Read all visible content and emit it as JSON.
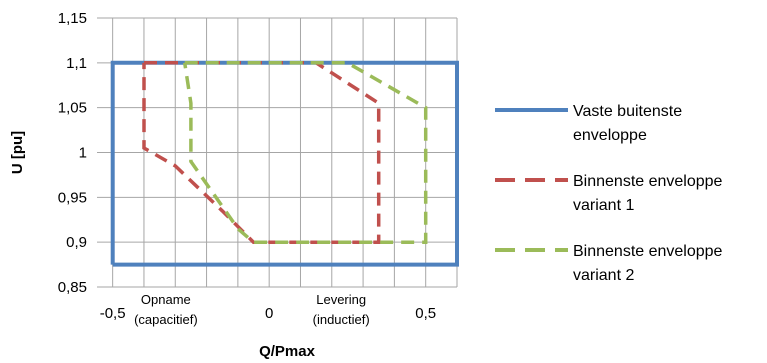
{
  "chart_data": {
    "type": "line",
    "title": "",
    "xlabel": "Q/Pmax",
    "ylabel": "U [pu]",
    "xlim": [
      -0.55,
      0.6
    ],
    "ylim": [
      0.85,
      1.15
    ],
    "grid": true,
    "x_gridlines": [
      -0.5,
      -0.4,
      -0.3,
      -0.2,
      -0.1,
      0,
      0.1,
      0.2,
      0.3,
      0.4,
      0.5,
      0.6
    ],
    "y_ticks": [
      0.85,
      0.9,
      0.95,
      1,
      1.05,
      1.1,
      1.15
    ],
    "y_tick_labels": [
      "0,85",
      "0,9",
      "0,95",
      "1",
      "1,05",
      "1,1",
      "1,15"
    ],
    "x_tick_labels": [
      {
        "value": -0.5,
        "label": "-0,5"
      },
      {
        "value": 0,
        "label": "0"
      },
      {
        "value": 0.5,
        "label": "0,5"
      }
    ],
    "annotations": [
      {
        "x": -0.33,
        "line1": "Opname",
        "line2": "(capacitief)"
      },
      {
        "x": 0.23,
        "line1": "Levering",
        "line2": "(inductief)"
      }
    ],
    "legend_position": "right",
    "series": [
      {
        "name_lines": [
          "Vaste buitenste",
          "enveloppe"
        ],
        "color": "#4f81bd",
        "style": "solid",
        "x": [
          -0.5,
          0.6,
          0.6,
          -0.5,
          -0.5
        ],
        "y": [
          0.875,
          0.875,
          1.1,
          1.1,
          0.875
        ]
      },
      {
        "name_lines": [
          "Binnenste enveloppe",
          "variant 1"
        ],
        "color": "#c0504d",
        "style": "dashed",
        "x": [
          -0.4,
          0.15,
          0.35,
          0.35,
          -0.05,
          -0.15,
          -0.3,
          -0.4,
          -0.4
        ],
        "y": [
          1.1,
          1.1,
          1.055,
          0.9,
          0.9,
          0.935,
          0.985,
          1.005,
          1.1
        ]
      },
      {
        "name_lines": [
          "Binnenste enveloppe",
          "variant 2"
        ],
        "color": "#9bbb59",
        "style": "dashed",
        "x": [
          -0.27,
          0.25,
          0.5,
          0.5,
          -0.05,
          -0.1,
          -0.25,
          -0.25,
          -0.27,
          -0.27
        ],
        "y": [
          1.1,
          1.1,
          1.05,
          0.9,
          0.9,
          0.915,
          0.99,
          1.055,
          1.1,
          1.1
        ]
      }
    ]
  }
}
